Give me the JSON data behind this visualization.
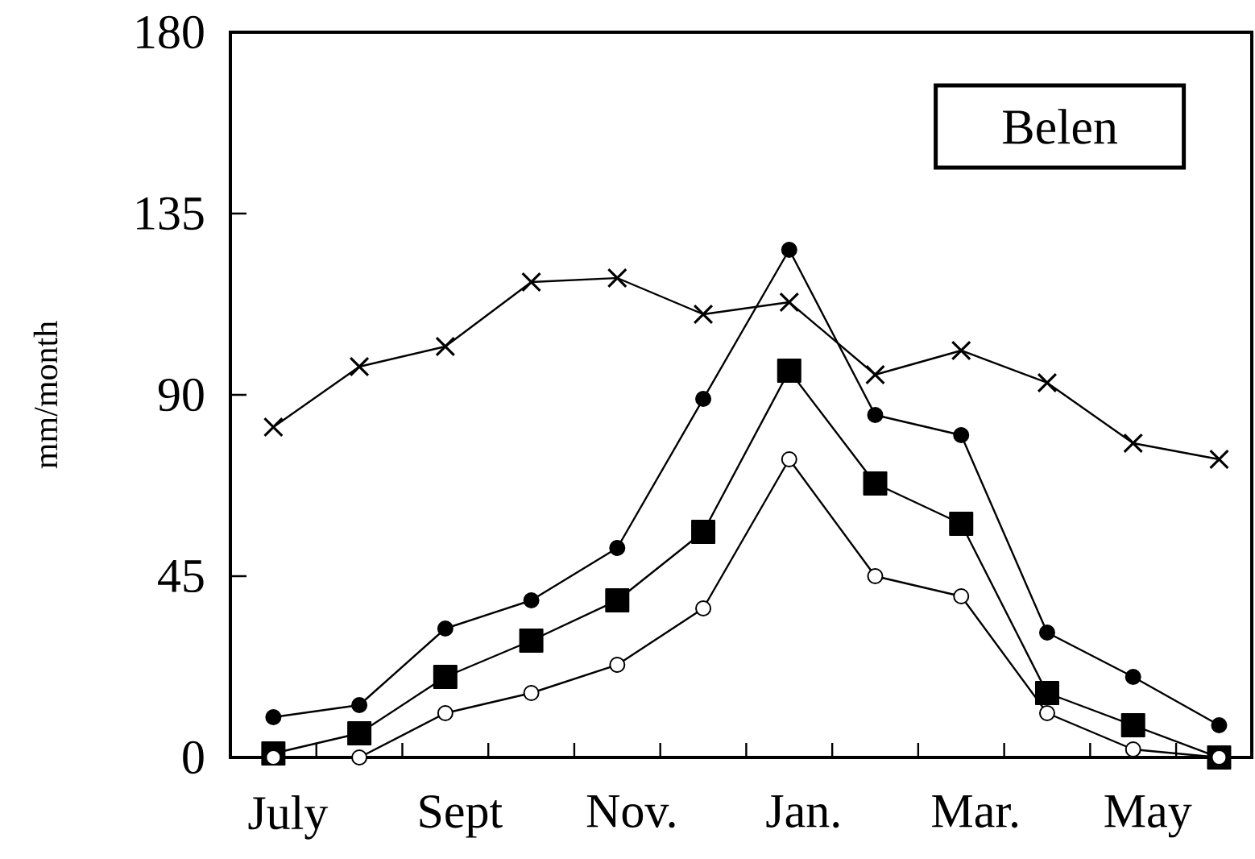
{
  "chart_data": {
    "type": "line",
    "ylabel": "mm/month",
    "annotations": [
      "Belen"
    ],
    "categories": [
      "July",
      null,
      "Sept",
      null,
      "Nov.",
      null,
      "Jan.",
      null,
      "Mar.",
      null,
      "May",
      null
    ],
    "ylim": [
      0,
      180
    ],
    "yticks": [
      0,
      45,
      90,
      135,
      180
    ],
    "line_style": "solid",
    "series": [
      {
        "color": "#000000",
        "marker": "cross",
        "values": [
          82,
          97,
          102,
          118,
          119,
          110,
          113,
          95,
          101,
          93,
          78,
          74
        ]
      },
      {
        "color": "#000000",
        "marker": "circle",
        "values": [
          10,
          13,
          32,
          39,
          52,
          89,
          126,
          85,
          80,
          31,
          20,
          8
        ]
      },
      {
        "color": "#000000",
        "marker": "square",
        "values": [
          1,
          6,
          20,
          29,
          39,
          56,
          96,
          68,
          58,
          16,
          8,
          0
        ]
      },
      {
        "color": "#000000",
        "marker": "circle",
        "values": [
          0,
          0,
          11,
          16,
          23,
          37,
          74,
          45,
          40,
          11,
          2,
          0
        ]
      }
    ]
  }
}
